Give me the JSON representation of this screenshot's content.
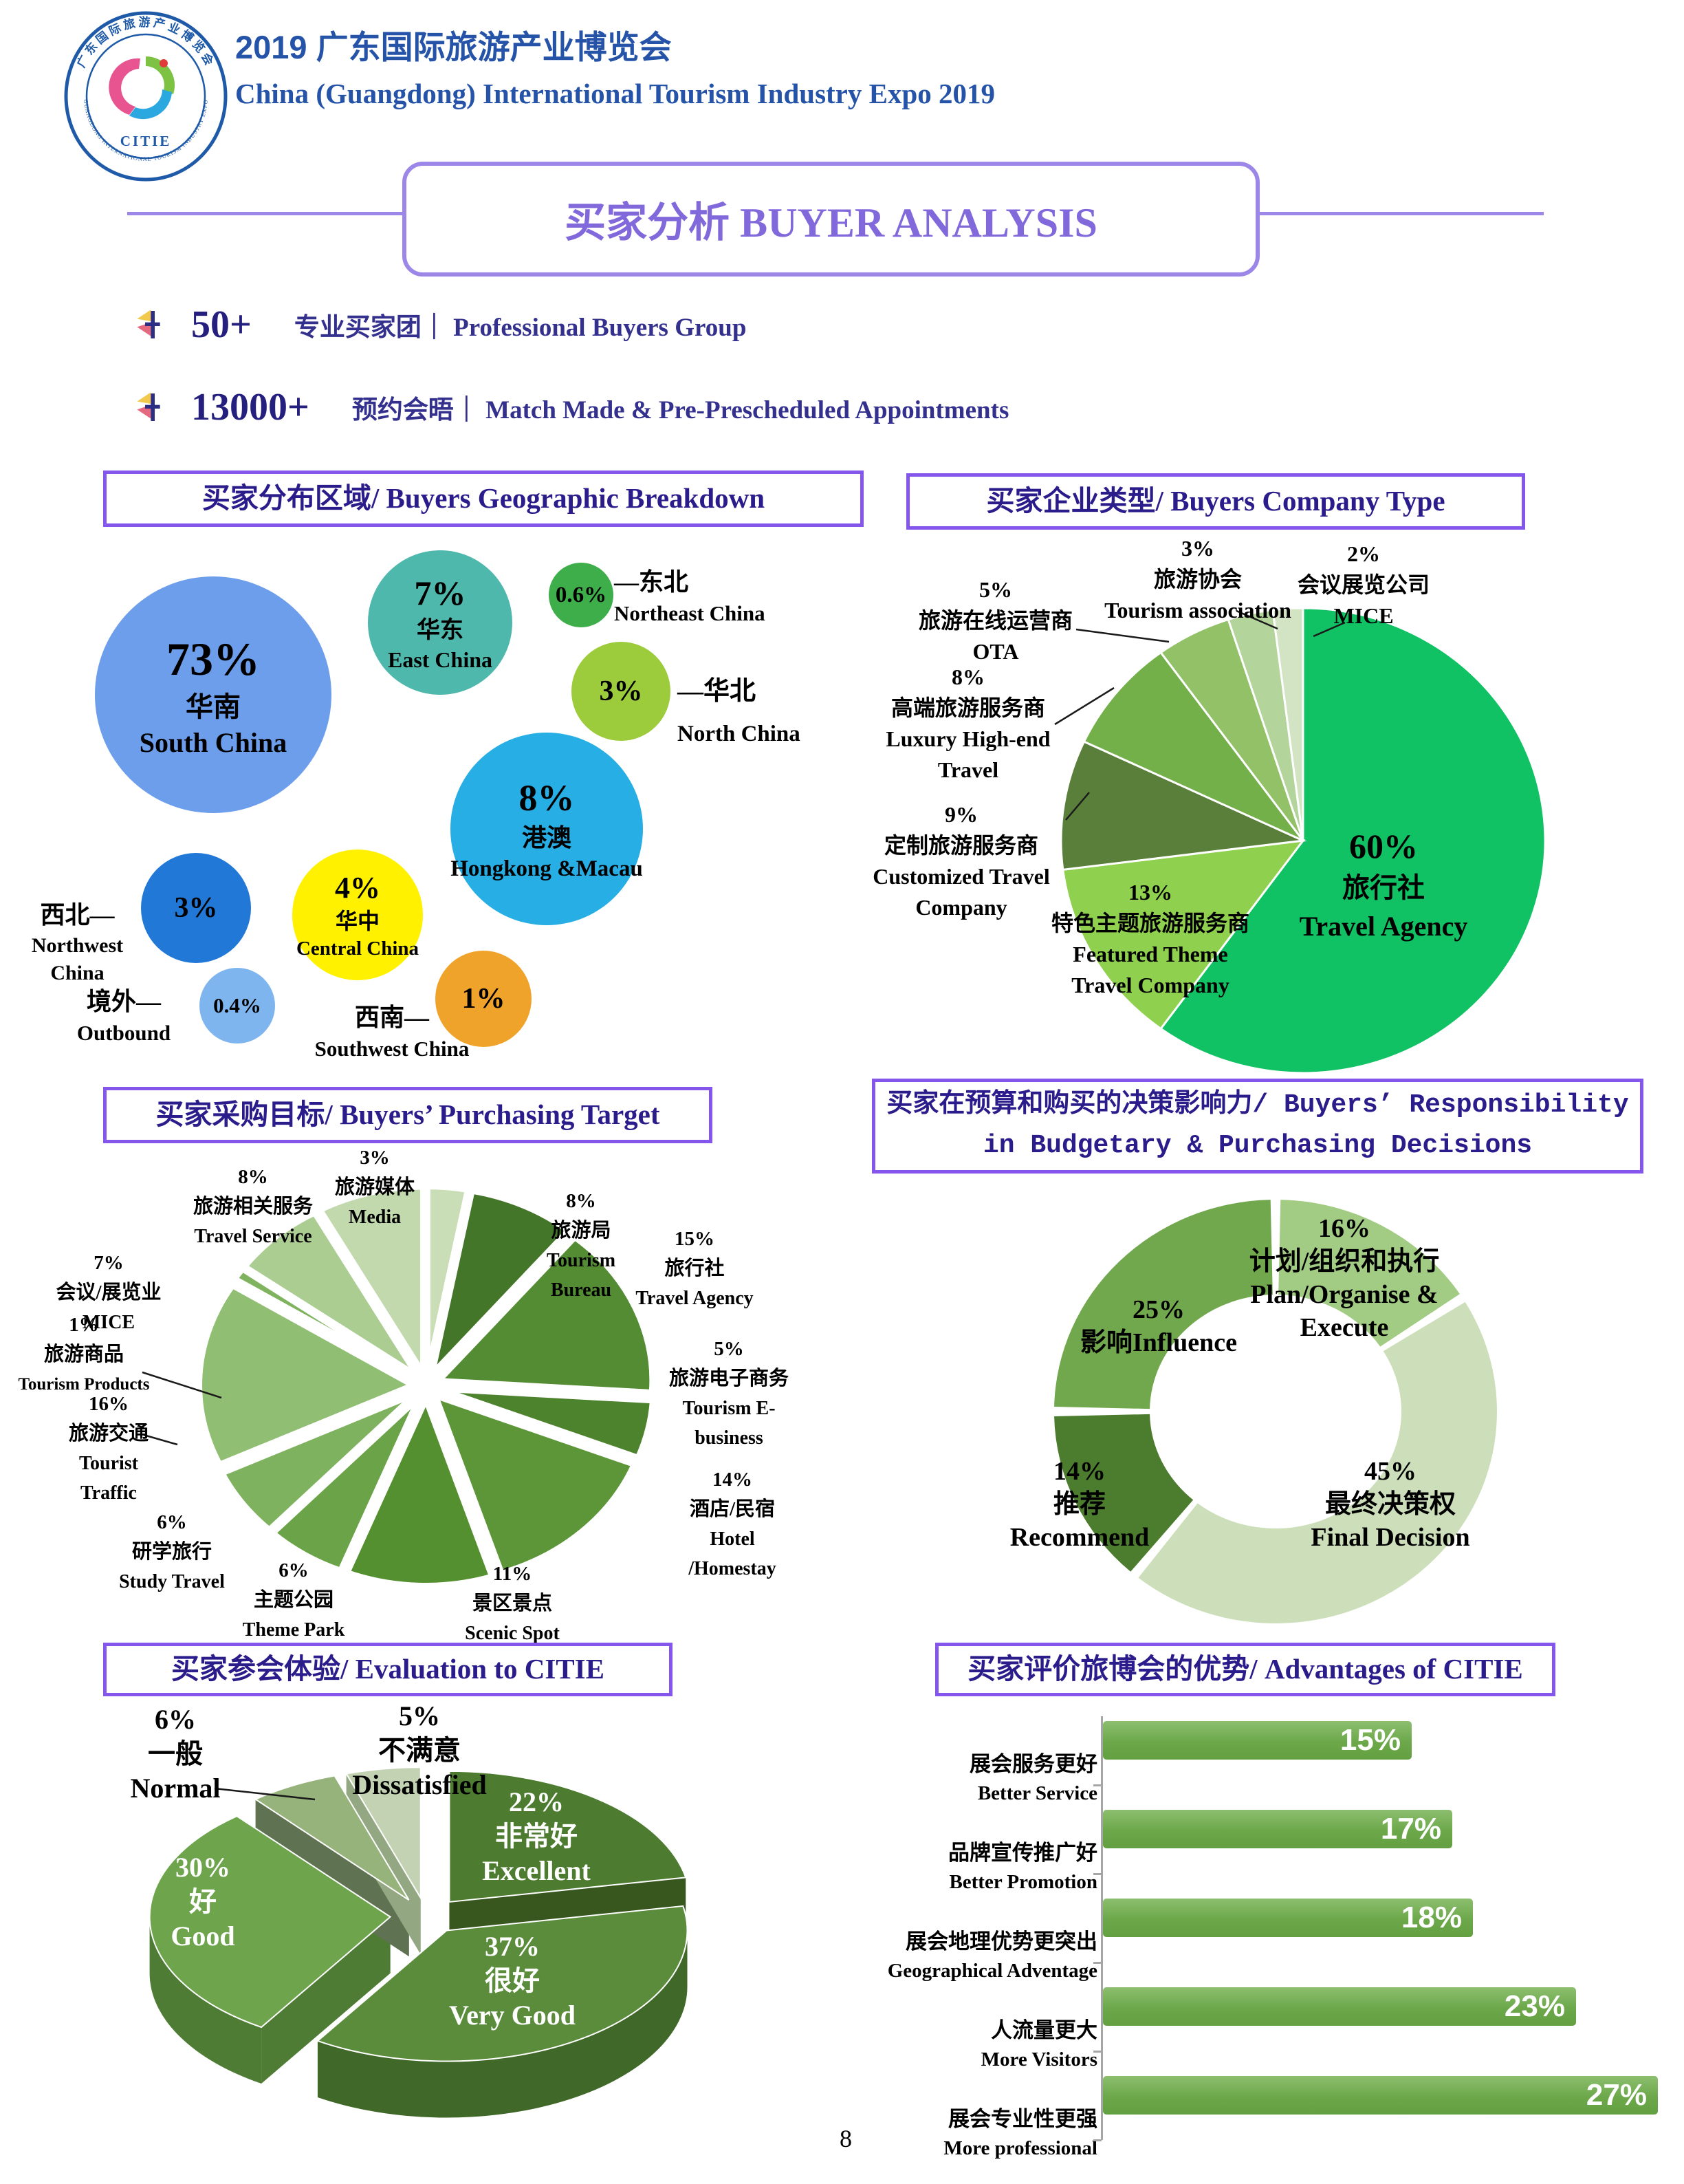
{
  "page": {
    "number": "8"
  },
  "accent": {
    "section_border": "#8456EC",
    "soft_purple": "#9C86E8",
    "title_purple": "#8168DB",
    "heading_ink": "#2B1C8C",
    "header_blue": "#2553A8",
    "stat_ink": "#251F7E"
  },
  "icons": {
    "stat_bullet": "flag-bullet-icon",
    "logo": "citie-expo-logo"
  },
  "header": {
    "title_zh": "2019 广东国际旅游产业博览会",
    "title_en": "China (Guangdong) International Tourism Industry Expo 2019",
    "logo": {
      "ring_top": "广东国际旅游产业博览会",
      "ring_bottom": "GUANGDONG INTERNATIONAL TOURISM INDUSTRY EXPO",
      "text": "CITIE"
    }
  },
  "page_title": "买家分析 BUYER ANALYSIS",
  "stats": [
    {
      "value": "50+",
      "label": "专业买家团｜ Professional Buyers Group"
    },
    {
      "value": "13000+",
      "label": "预约会晤｜ Match Made & Pre-Prescheduled Appointments"
    }
  ],
  "sections": {
    "geo": "买家分布区域/ Buyers Geographic Breakdown",
    "company": "买家企业类型/ Buyers Company Type",
    "target": "买家采购目标/ Buyers’ Purchasing Target",
    "responsibility_1": "买家在预算和购买的决策影响力/ Buyers’ Responsibility",
    "responsibility_2": "in Budgetary & Purchasing Decisions",
    "evaluation": "买家参会体验/ Evaluation to CITIE",
    "advantages": "买家评价旅博会的优势/ Advantages of CITIE"
  },
  "chart_data": {
    "geo_bubble": {
      "type": "bubble",
      "title": "买家分布区域/ Buyers Geographic Breakdown",
      "bubbles": [
        {
          "key": "south",
          "pct": "73%",
          "zh": "华南",
          "en": "South China",
          "value": 73,
          "color": "#6D9EEB"
        },
        {
          "key": "east",
          "pct": "7%",
          "zh": "华东",
          "en": "East China",
          "value": 7,
          "color": "#4FB8AC"
        },
        {
          "key": "northeast",
          "pct": "0.6%",
          "zh": "—东北",
          "en": "Northeast China",
          "value": 0.6,
          "color": "#3DAE49"
        },
        {
          "key": "north",
          "pct": "3%",
          "zh": "—华北",
          "en": "North China",
          "value": 3,
          "color": "#9CCB3B"
        },
        {
          "key": "hkmacau",
          "pct": "8%",
          "zh": "港澳",
          "en": "Hongkong &Macau",
          "value": 8,
          "color": "#27AEE4"
        },
        {
          "key": "central",
          "pct": "4%",
          "zh": "华中",
          "en": "Central China",
          "value": 4,
          "color": "#FFF100"
        },
        {
          "key": "northwest",
          "pct": "3%",
          "zh": "西北—",
          "en": "Northwest China",
          "value": 3,
          "color": "#2178D6"
        },
        {
          "key": "outbound",
          "pct": "0.4%",
          "zh": "境外—",
          "en": "Outbound",
          "value": 0.4,
          "color": "#7FB5EE"
        },
        {
          "key": "southwest",
          "pct": "1%",
          "zh": "西南—",
          "en": "Southwest China",
          "value": 1,
          "color": "#F0A32A"
        }
      ]
    },
    "company_pie": {
      "type": "pie",
      "title": "买家企业类型/ Buyers Company Type",
      "slices": [
        {
          "key": "travel-agency",
          "pct": "60%",
          "zh": "旅行社",
          "en": "Travel Agency",
          "value": 60,
          "color": "#10C263"
        },
        {
          "key": "featured-theme",
          "pct": "13%",
          "zh": "特色主题旅游服务商",
          "en": "Featured Theme Travel Company",
          "value": 13,
          "color": "#8FD04E"
        },
        {
          "key": "customized",
          "pct": "9%",
          "zh": "定制旅游服务商",
          "en": "Customized Travel Company",
          "value": 9,
          "color": "#5A7F3B"
        },
        {
          "key": "luxury",
          "pct": "8%",
          "zh": "高端旅游服务商",
          "en": "Luxury High-end Travel",
          "value": 8,
          "color": "#74B04A"
        },
        {
          "key": "ota",
          "pct": "5%",
          "zh": "旅游在线运营商",
          "en": "OTA",
          "value": 5,
          "color": "#93C168"
        },
        {
          "key": "association",
          "pct": "3%",
          "zh": "旅游协会",
          "en": "Tourism association",
          "value": 3,
          "color": "#B3D49B"
        },
        {
          "key": "mice",
          "pct": "2%",
          "zh": "会议展览公司",
          "en": "MICE",
          "value": 2,
          "color": "#D2E4C4"
        }
      ]
    },
    "target_pie": {
      "type": "pie",
      "exploded": true,
      "title": "买家采购目标/ Buyers’ Purchasing Target",
      "slices": [
        {
          "key": "media",
          "pct": "3%",
          "zh": "旅游媒体",
          "en": "Media",
          "value": 3,
          "color": "#C9DDB6"
        },
        {
          "key": "tourism-bureau",
          "pct": "8%",
          "zh": "旅游局",
          "en": "Tourism Bureau",
          "value": 8,
          "color": "#44762A"
        },
        {
          "key": "travel-agency",
          "pct": "15%",
          "zh": "旅行社",
          "en": "Travel Agency",
          "value": 15,
          "color": "#538C33"
        },
        {
          "key": "e-business",
          "pct": "5%",
          "zh": "旅游电子商务",
          "en": "Tourism E-business",
          "value": 5,
          "color": "#4E832E"
        },
        {
          "key": "hotel",
          "pct": "14%",
          "zh": "酒店/民宿",
          "en": "Hotel /Homestay",
          "value": 14,
          "color": "#5C9639"
        },
        {
          "key": "scenic-spot",
          "pct": "11%",
          "zh": "景区景点",
          "en": "Scenic Spot",
          "value": 11,
          "color": "#559030"
        },
        {
          "key": "theme-park",
          "pct": "6%",
          "zh": "主题公园",
          "en": "Theme Park",
          "value": 6,
          "color": "#6BA348"
        },
        {
          "key": "study-travel",
          "pct": "6%",
          "zh": "研学旅行",
          "en": "Study Travel",
          "value": 6,
          "color": "#7FB25E"
        },
        {
          "key": "tourist-traffic",
          "pct": "16%",
          "zh": "旅游交通",
          "en": "Tourist Traffic",
          "value": 16,
          "color": "#90BE72"
        },
        {
          "key": "tourism-products",
          "pct": "1%",
          "zh": "旅游商品",
          "en": "Tourism Products",
          "value": 1,
          "color": "#7FB35E"
        },
        {
          "key": "mice",
          "pct": "7%",
          "zh": "会议/展览业",
          "en": "MICE",
          "value": 7,
          "color": "#ABCD92"
        },
        {
          "key": "travel-service",
          "pct": "8%",
          "zh": "旅游相关服务",
          "en": "Travel Service",
          "value": 8,
          "color": "#C2D9AE"
        }
      ]
    },
    "responsibility_donut": {
      "type": "donut",
      "title": "买家在预算和购买的决策影响力/ Buyers’ Responsibility in Budgetary & Purchasing Decisions",
      "segments": [
        {
          "key": "plan",
          "pct": "16%",
          "zh": "计划/组织和执行",
          "en": "Plan/Organise & Execute",
          "value": 16,
          "color": "#A2CB83"
        },
        {
          "key": "final-decision",
          "pct": "45%",
          "zh": "最终决策权",
          "en": "Final Decision",
          "value": 45,
          "color": "#CCDFBA"
        },
        {
          "key": "recommend",
          "pct": "14%",
          "zh": "推荐",
          "en": "Recommend",
          "value": 14,
          "color": "#4C7C2D"
        },
        {
          "key": "influence",
          "pct": "25%",
          "zh": "影响",
          "en": "Influence",
          "label": "影响Influence",
          "value": 25,
          "color": "#71A84E"
        }
      ]
    },
    "evaluation_pie3d": {
      "type": "pie",
      "style": "3d-exploded",
      "title": "买家参会体验/ Evaluation to CITIE",
      "slices": [
        {
          "key": "excellent",
          "pct": "22%",
          "zh": "非常好",
          "en": "Excellent",
          "value": 22,
          "color": "#4D7C31",
          "side": "#37571F"
        },
        {
          "key": "very-good",
          "pct": "37%",
          "zh": "很好",
          "en": "Very Good",
          "value": 37,
          "color": "#5A8C3C",
          "side": "#406828"
        },
        {
          "key": "good",
          "pct": "30%",
          "zh": "好",
          "en": "Good",
          "value": 30,
          "color": "#6DA44C",
          "side": "#4F7C35"
        },
        {
          "key": "normal",
          "pct": "6%",
          "zh": "一般",
          "en": "Normal",
          "value": 6,
          "color": "#96B37C",
          "side": "#5F7352"
        },
        {
          "key": "dissatisfied",
          "pct": "5%",
          "zh": "不满意",
          "en": "Dissatisfied",
          "value": 5,
          "color": "#C2D2B2",
          "side": "#93A782"
        }
      ]
    },
    "advantages_bar": {
      "type": "bar",
      "orientation": "horizontal",
      "title": "买家评价旅博会的优势/ Advantages of CITIE",
      "unit": "%",
      "xlim": [
        0,
        27
      ],
      "bar_color": "#6CA84A",
      "rows": [
        {
          "zh": "展会服务更好",
          "en": "Better Service",
          "value": 15,
          "label": "15%"
        },
        {
          "zh": "品牌宣传推广好",
          "en": "Better Promotion",
          "value": 17,
          "label": "17%"
        },
        {
          "zh": "展会地理优势更突出",
          "en": "Geographical Adventage",
          "value": 18,
          "label": "18%"
        },
        {
          "zh": "人流量更大",
          "en": "More Visitors",
          "value": 23,
          "label": "23%"
        },
        {
          "zh": "展会专业性更强",
          "en": "More professional",
          "value": 27,
          "label": "27%"
        }
      ]
    }
  }
}
